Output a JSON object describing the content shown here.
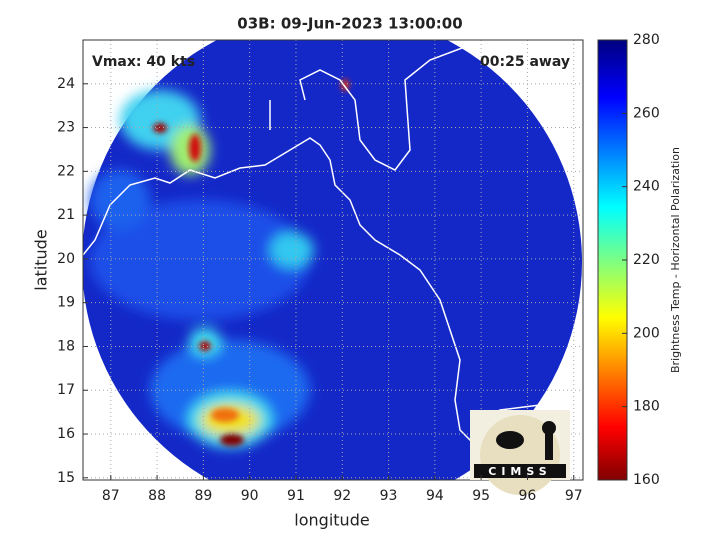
{
  "chart_data": {
    "type": "map",
    "title": "03B: 09-Jun-2023 13:00:00",
    "annotations": [
      "Vmax: 40 kts",
      "00:25 away"
    ],
    "xlabel": "longitude",
    "ylabel": "latitude",
    "xlim": [
      86.4,
      97.2
    ],
    "ylim": [
      14.95,
      25
    ],
    "xticks": [
      87,
      88,
      89,
      90,
      91,
      92,
      93,
      94,
      95,
      96,
      97
    ],
    "yticks": [
      15,
      16,
      17,
      18,
      19,
      20,
      21,
      22,
      23,
      24
    ],
    "grid": true,
    "colorbar": {
      "label": "Brightness Temp - Horizontal Polarization",
      "lim": [
        160,
        280
      ],
      "ticks": [
        160,
        180,
        200,
        220,
        240,
        260,
        280
      ]
    },
    "logo": "CIMSS"
  }
}
